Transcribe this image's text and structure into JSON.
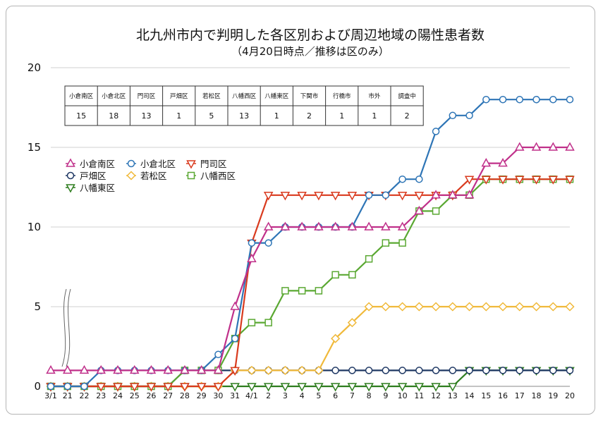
{
  "chart_data": {
    "type": "line",
    "title": "北九州市内で判明した各区別および周辺地域の陽性患者数",
    "subtitle": "（4月20日時点／推移は区のみ）",
    "ylim": [
      0,
      20
    ],
    "yticks": [
      0,
      5,
      10,
      15,
      20
    ],
    "grid": true,
    "legend_position": "left",
    "x": [
      "3/1",
      "21",
      "22",
      "23",
      "24",
      "25",
      "26",
      "27",
      "28",
      "29",
      "30",
      "31",
      "4/1",
      "2",
      "3",
      "4",
      "5",
      "6",
      "7",
      "8",
      "9",
      "10",
      "11",
      "12",
      "13",
      "14",
      "15",
      "16",
      "17",
      "18",
      "19",
      "20"
    ],
    "series": [
      {
        "name": "小倉南区",
        "color": "#c0308a",
        "marker": "triangle-up",
        "values": [
          1,
          1,
          1,
          1,
          1,
          1,
          1,
          1,
          1,
          1,
          1,
          5,
          8,
          10,
          10,
          10,
          10,
          10,
          10,
          10,
          10,
          10,
          11,
          12,
          12,
          12,
          14,
          14,
          15,
          15,
          15,
          15
        ]
      },
      {
        "name": "小倉北区",
        "color": "#2e75b6",
        "marker": "circle",
        "values": [
          0,
          0,
          0,
          1,
          1,
          1,
          1,
          1,
          1,
          1,
          2,
          3,
          9,
          9,
          10,
          10,
          10,
          10,
          10,
          12,
          12,
          13,
          13,
          16,
          17,
          17,
          18,
          18,
          18,
          18,
          18,
          18
        ]
      },
      {
        "name": "門司区",
        "color": "#d93a1e",
        "marker": "triangle-down",
        "values": [
          0,
          0,
          0,
          0,
          0,
          0,
          0,
          0,
          0,
          0,
          0,
          1,
          9,
          12,
          12,
          12,
          12,
          12,
          12,
          12,
          12,
          12,
          12,
          12,
          12,
          13,
          13,
          13,
          13,
          13,
          13,
          13
        ]
      },
      {
        "name": "戸畑区",
        "color": "#1f3864",
        "marker": "circle",
        "values": [
          0,
          0,
          0,
          0,
          0,
          0,
          0,
          0,
          1,
          1,
          1,
          1,
          1,
          1,
          1,
          1,
          1,
          1,
          1,
          1,
          1,
          1,
          1,
          1,
          1,
          1,
          1,
          1,
          1,
          1,
          1,
          1
        ]
      },
      {
        "name": "若松区",
        "color": "#f0b93a",
        "marker": "diamond",
        "values": [
          0,
          0,
          0,
          0,
          0,
          0,
          0,
          0,
          0,
          0,
          0,
          1,
          1,
          1,
          1,
          1,
          1,
          3,
          4,
          5,
          5,
          5,
          5,
          5,
          5,
          5,
          5,
          5,
          5,
          5,
          5,
          5
        ]
      },
      {
        "name": "八幡西区",
        "color": "#5aa832",
        "marker": "square",
        "values": [
          0,
          0,
          0,
          0,
          0,
          0,
          0,
          0,
          1,
          1,
          1,
          3,
          4,
          4,
          6,
          6,
          6,
          7,
          7,
          8,
          9,
          9,
          11,
          11,
          12,
          12,
          13,
          13,
          13,
          13,
          13,
          13
        ]
      },
      {
        "name": "八幡東区",
        "color": "#2e7d1e",
        "marker": "triangle-down",
        "values": [
          0,
          0,
          0,
          0,
          0,
          0,
          0,
          0,
          0,
          0,
          0,
          0,
          0,
          0,
          0,
          0,
          0,
          0,
          0,
          0,
          0,
          0,
          0,
          0,
          0,
          1,
          1,
          1,
          1,
          1,
          1,
          1
        ]
      }
    ],
    "table": {
      "headers": [
        "小倉南区",
        "小倉北区",
        "門司区",
        "戸畑区",
        "若松区",
        "八幡西区",
        "八幡東区",
        "下関市",
        "行橋市",
        "市外",
        "調査中"
      ],
      "values": [
        "15",
        "18",
        "13",
        "1",
        "5",
        "13",
        "1",
        "2",
        "1",
        "1",
        "2"
      ]
    }
  }
}
